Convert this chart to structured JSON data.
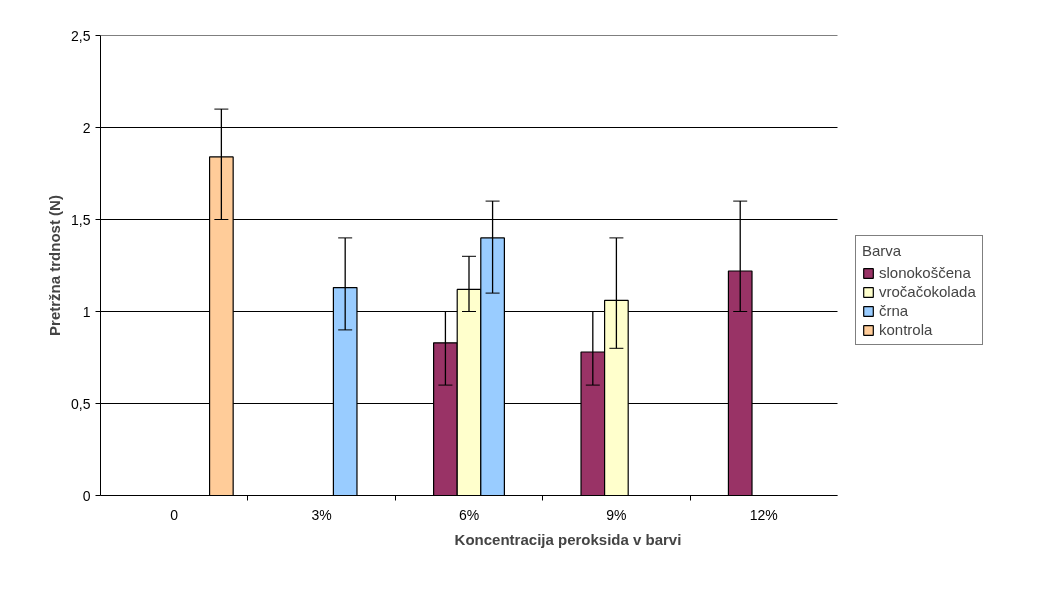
{
  "chart_data": {
    "type": "bar",
    "xlabel": "Koncentracija peroksida v barvi",
    "ylabel": "Pretržna trdnost (N)",
    "legend_title": "Barva",
    "categories": [
      "0",
      "3%",
      "6%",
      "9%",
      "12%"
    ],
    "series": [
      {
        "name": "slonokoščena",
        "color": "#993366",
        "values": [
          null,
          null,
          0.83,
          0.78,
          1.22
        ],
        "errors": [
          null,
          null,
          [
            0.6,
            1.0
          ],
          [
            0.6,
            1.0
          ],
          [
            1.0,
            1.6
          ]
        ]
      },
      {
        "name": "vročačokolada",
        "color": "#ffffcc",
        "values": [
          null,
          null,
          1.12,
          1.06,
          null
        ],
        "errors": [
          null,
          null,
          [
            1.0,
            1.3
          ],
          [
            0.8,
            1.4
          ],
          null
        ]
      },
      {
        "name": "črna",
        "color": "#99ccff",
        "values": [
          null,
          1.13,
          1.4,
          null,
          null
        ],
        "errors": [
          null,
          [
            0.9,
            1.4
          ],
          [
            1.1,
            1.6
          ],
          null,
          null
        ]
      },
      {
        "name": "kontrola",
        "color": "#ffcc99",
        "values": [
          1.84,
          null,
          null,
          null,
          null
        ],
        "errors": [
          [
            1.5,
            2.1
          ],
          null,
          null,
          null,
          null
        ]
      }
    ],
    "ylim": [
      0,
      2.5
    ],
    "yticks": [
      0,
      {
        "value": 0.5,
        "label": "0,5"
      },
      1,
      {
        "value": 1.5,
        "label": "1,5"
      },
      2,
      {
        "value": 2.5,
        "label": "2,5"
      }
    ],
    "grid": "y",
    "legend": "right"
  }
}
